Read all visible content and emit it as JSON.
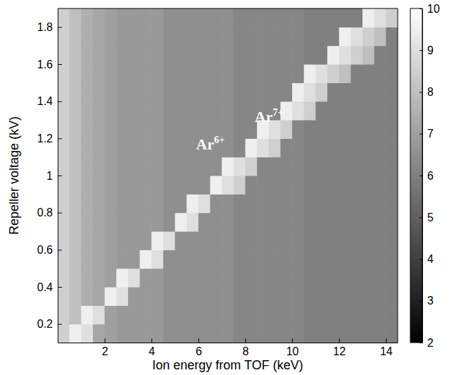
{
  "chart_data": {
    "type": "heatmap",
    "x_label": "Ion energy from TOF (keV)",
    "y_label": "Repeller voltage (kV)",
    "xlim": [
      0,
      14.5
    ],
    "ylim": [
      0.1,
      1.9
    ],
    "xticks": [
      2,
      4,
      6,
      8,
      10,
      12,
      14
    ],
    "yticks": [
      0.2,
      0.4,
      0.6,
      0.8,
      1,
      1.2,
      1.4,
      1.6,
      1.8
    ],
    "xbins": [
      0,
      0.5,
      1,
      1.5,
      2,
      2.5,
      3,
      3.5,
      4,
      4.5,
      5,
      5.5,
      6,
      6.5,
      7,
      7.5,
      8,
      8.5,
      9,
      9.5,
      10,
      10.5,
      11,
      11.5,
      12,
      12.5,
      13,
      13.5,
      14,
      14.5
    ],
    "ybins": [
      0.1,
      0.2,
      0.3,
      0.4,
      0.5,
      0.6,
      0.7,
      0.8,
      0.9,
      1,
      1.1,
      1.2,
      1.3,
      1.4,
      1.5,
      1.6,
      1.7,
      1.8,
      1.9
    ],
    "z": [
      [
        8.5,
        9.5,
        9,
        7.2,
        7,
        6.8,
        6.8,
        6.8,
        6.8,
        6.5,
        6.5,
        6.5,
        6.5,
        6.5,
        6.5,
        6.2,
        6.2,
        6.2,
        6.2,
        6.2,
        6.2,
        6,
        6,
        6,
        6,
        6,
        6,
        6,
        6
      ],
      [
        8.5,
        8,
        9.5,
        9,
        7,
        6.8,
        6.8,
        6.8,
        6.8,
        6.5,
        6.5,
        6.5,
        6.5,
        6.5,
        6.5,
        6.2,
        6.2,
        6.2,
        6.2,
        6.2,
        6.2,
        6,
        6,
        6,
        6,
        6,
        6,
        6,
        6
      ],
      [
        8.5,
        8,
        7.5,
        7.2,
        9.5,
        9,
        6.8,
        6.8,
        6.8,
        6.5,
        6.5,
        6.5,
        6.5,
        6.5,
        6.5,
        6.2,
        6.2,
        6.2,
        6.2,
        6.2,
        6.2,
        6,
        6,
        6,
        6,
        6,
        6,
        6,
        6
      ],
      [
        8.5,
        8,
        7.5,
        7.2,
        7,
        9.5,
        9,
        6.8,
        6.8,
        6.5,
        6.5,
        6.5,
        6.5,
        6.5,
        6.5,
        6.2,
        6.2,
        6.2,
        6.2,
        6.2,
        6.2,
        6,
        6,
        6,
        6,
        6,
        6,
        6,
        6
      ],
      [
        8.5,
        8,
        7.5,
        7.2,
        7,
        6.8,
        6.8,
        9.5,
        9,
        6.5,
        6.5,
        6.5,
        6.5,
        6.5,
        6.5,
        6.2,
        6.2,
        6.2,
        6.2,
        6.2,
        6.2,
        6,
        6,
        6,
        6,
        6,
        6,
        6,
        6
      ],
      [
        8.5,
        8,
        7.5,
        7.2,
        7,
        6.8,
        6.8,
        6.8,
        9.5,
        9,
        6.5,
        6.5,
        6.5,
        6.5,
        6.5,
        6.2,
        6.2,
        6.2,
        6.2,
        6.2,
        6.2,
        6,
        6,
        6,
        6,
        6,
        6,
        6,
        6
      ],
      [
        8.5,
        8,
        7.5,
        7.2,
        7,
        6.8,
        6.8,
        6.8,
        6.8,
        6.5,
        9.5,
        9,
        6.5,
        6.5,
        6.5,
        6.2,
        6.2,
        6.2,
        6.2,
        6.2,
        6.2,
        6,
        6,
        6,
        6,
        6,
        6,
        6,
        6
      ],
      [
        8.5,
        8,
        7.5,
        7.2,
        7,
        6.8,
        6.8,
        6.8,
        6.8,
        6.5,
        6.5,
        9.5,
        9,
        6.5,
        6.5,
        6.2,
        6.2,
        6.2,
        6.2,
        6.2,
        6.2,
        6,
        6,
        6,
        6,
        6,
        6,
        6,
        6
      ],
      [
        8.5,
        8,
        7.5,
        7.2,
        7,
        6.8,
        6.8,
        6.8,
        6.8,
        6.5,
        6.5,
        6.5,
        6.5,
        9.5,
        9,
        8.5,
        6.2,
        6.2,
        6.2,
        6.2,
        6.2,
        6,
        6,
        6,
        6,
        6,
        6,
        6,
        6
      ],
      [
        8.5,
        8,
        7.5,
        7.2,
        7,
        6.8,
        6.8,
        6.8,
        6.8,
        6.5,
        6.5,
        6.5,
        6.5,
        6.5,
        9.5,
        9,
        8.5,
        6.2,
        6.2,
        6.2,
        6.2,
        6,
        6,
        6,
        6,
        6,
        6,
        6,
        6
      ],
      [
        8.5,
        8,
        7.5,
        7.2,
        7,
        6.8,
        6.8,
        6.8,
        6.8,
        6.5,
        6.5,
        6.5,
        6.5,
        6.5,
        6.5,
        6.2,
        9.5,
        9,
        8.5,
        6.2,
        6.2,
        6,
        6,
        6,
        6,
        6,
        6,
        6,
        6
      ],
      [
        8.5,
        8,
        7.5,
        7.2,
        7,
        6.8,
        6.8,
        6.8,
        6.8,
        6.5,
        6.5,
        6.5,
        6.5,
        6.5,
        6.5,
        6.2,
        6.2,
        9.5,
        9,
        8.5,
        6.2,
        6,
        6,
        6,
        6,
        6,
        6,
        6,
        6
      ],
      [
        8.5,
        8,
        7.5,
        7.2,
        7,
        6.8,
        6.8,
        6.8,
        6.8,
        6.5,
        6.5,
        6.5,
        6.5,
        6.5,
        6.5,
        6.2,
        6.2,
        6.2,
        6.2,
        9.5,
        9,
        8.5,
        6,
        6,
        6,
        6,
        6,
        6,
        6
      ],
      [
        8.5,
        8,
        7.5,
        7.2,
        7,
        6.8,
        6.8,
        6.8,
        6.8,
        6.5,
        6.5,
        6.5,
        6.5,
        6.5,
        6.5,
        6.2,
        6.2,
        6.2,
        6.2,
        6.2,
        9.5,
        9,
        8.5,
        6,
        6,
        6,
        6,
        6,
        6
      ],
      [
        8.5,
        8,
        7.5,
        7.2,
        7,
        6.8,
        6.8,
        6.8,
        6.8,
        6.5,
        6.5,
        6.5,
        6.5,
        6.5,
        6.5,
        6.2,
        6.2,
        6.2,
        6.2,
        6.2,
        6.2,
        9.5,
        9,
        8.5,
        8,
        6,
        6,
        6,
        6
      ],
      [
        8.5,
        8,
        7.5,
        7.2,
        7,
        6.8,
        6.8,
        6.8,
        6.8,
        6.5,
        6.5,
        6.5,
        6.5,
        6.5,
        6.5,
        6.2,
        6.2,
        6.2,
        6.2,
        6.2,
        6.2,
        6,
        6,
        9.5,
        9,
        8.5,
        8,
        6,
        6
      ],
      [
        8.5,
        8,
        7.5,
        7.2,
        7,
        6.8,
        6.8,
        6.8,
        6.8,
        6.5,
        6.5,
        6.5,
        6.5,
        6.5,
        6.5,
        6.2,
        6.2,
        6.2,
        6.2,
        6.2,
        6.2,
        6,
        6,
        6,
        9.5,
        9,
        8.5,
        8,
        6
      ],
      [
        8.5,
        8,
        7.5,
        7.2,
        7,
        6.8,
        6.8,
        6.8,
        6.8,
        6.5,
        6.5,
        6.5,
        6.5,
        6.5,
        6.5,
        6.2,
        6.2,
        6.2,
        6.2,
        6.2,
        6.2,
        6,
        6,
        6,
        6,
        6,
        9.5,
        9,
        8.5
      ]
    ],
    "colorbar": {
      "range": [
        2,
        10
      ],
      "ticks": [
        2,
        3,
        4,
        5,
        6,
        7,
        8,
        9,
        10
      ]
    },
    "annotations": [
      {
        "text": "Ar",
        "superscript": "6+",
        "x": 5.9,
        "y": 1.14
      },
      {
        "text": "Ar",
        "superscript": "7+",
        "x": 8.4,
        "y": 1.29
      }
    ]
  }
}
